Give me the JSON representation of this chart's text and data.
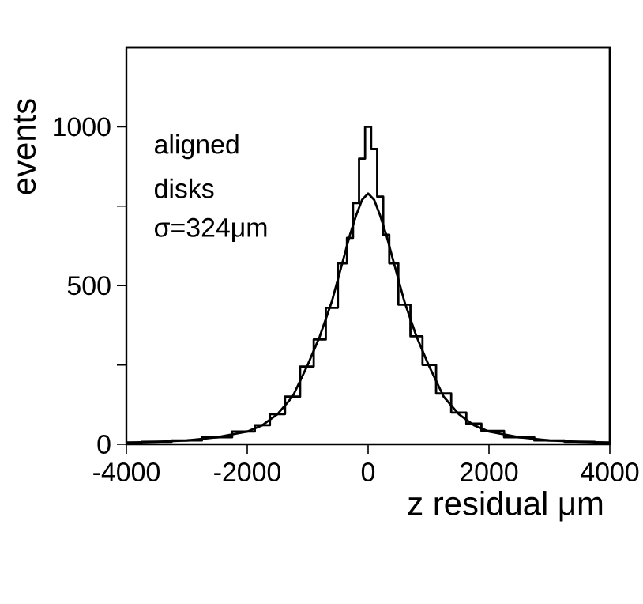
{
  "chart_data": {
    "type": "line",
    "xlabel": "z residual μm",
    "ylabel": "events",
    "annotations": [
      "aligned",
      "disks",
      "σ=324μm"
    ],
    "xlim": [
      -4000,
      4000
    ],
    "ylim": [
      0,
      1250
    ],
    "xticks": [
      -4000,
      -2000,
      0,
      2000,
      4000
    ],
    "yticks": [
      0,
      {
        "value": 250,
        "label": null
      },
      500,
      {
        "value": 750,
        "label": null
      },
      1000
    ],
    "series": [
      {
        "type": "step",
        "color": "#000000",
        "x": [
          -4000,
          -3500,
          -3000,
          -2500,
          -2000,
          -1750,
          -1500,
          -1250,
          -1000,
          -800,
          -600,
          -400,
          -300,
          -200,
          -100,
          0,
          100,
          200,
          300,
          400,
          600,
          800,
          1000,
          1250,
          1500,
          1750,
          2000,
          2500,
          3000,
          3500,
          4000
        ],
        "values": [
          5,
          8,
          12,
          22,
          40,
          60,
          95,
          150,
          245,
          330,
          430,
          570,
          650,
          760,
          900,
          1000,
          930,
          780,
          660,
          570,
          440,
          340,
          250,
          160,
          100,
          65,
          42,
          22,
          12,
          8,
          5
        ]
      },
      {
        "color": "#000000",
        "x": [
          -4000,
          -3500,
          -3000,
          -2500,
          -2000,
          -1750,
          -1500,
          -1250,
          -1000,
          -800,
          -600,
          -400,
          -300,
          -200,
          -100,
          0,
          100,
          200,
          300,
          400,
          600,
          800,
          1000,
          1250,
          1500,
          1750,
          2000,
          2500,
          3000,
          3500,
          4000
        ],
        "values": [
          5,
          8,
          12,
          22,
          40,
          60,
          95,
          150,
          250,
          340,
          450,
          590,
          660,
          720,
          770,
          790,
          770,
          720,
          660,
          590,
          450,
          340,
          250,
          150,
          95,
          60,
          40,
          22,
          12,
          8,
          5
        ]
      }
    ]
  }
}
